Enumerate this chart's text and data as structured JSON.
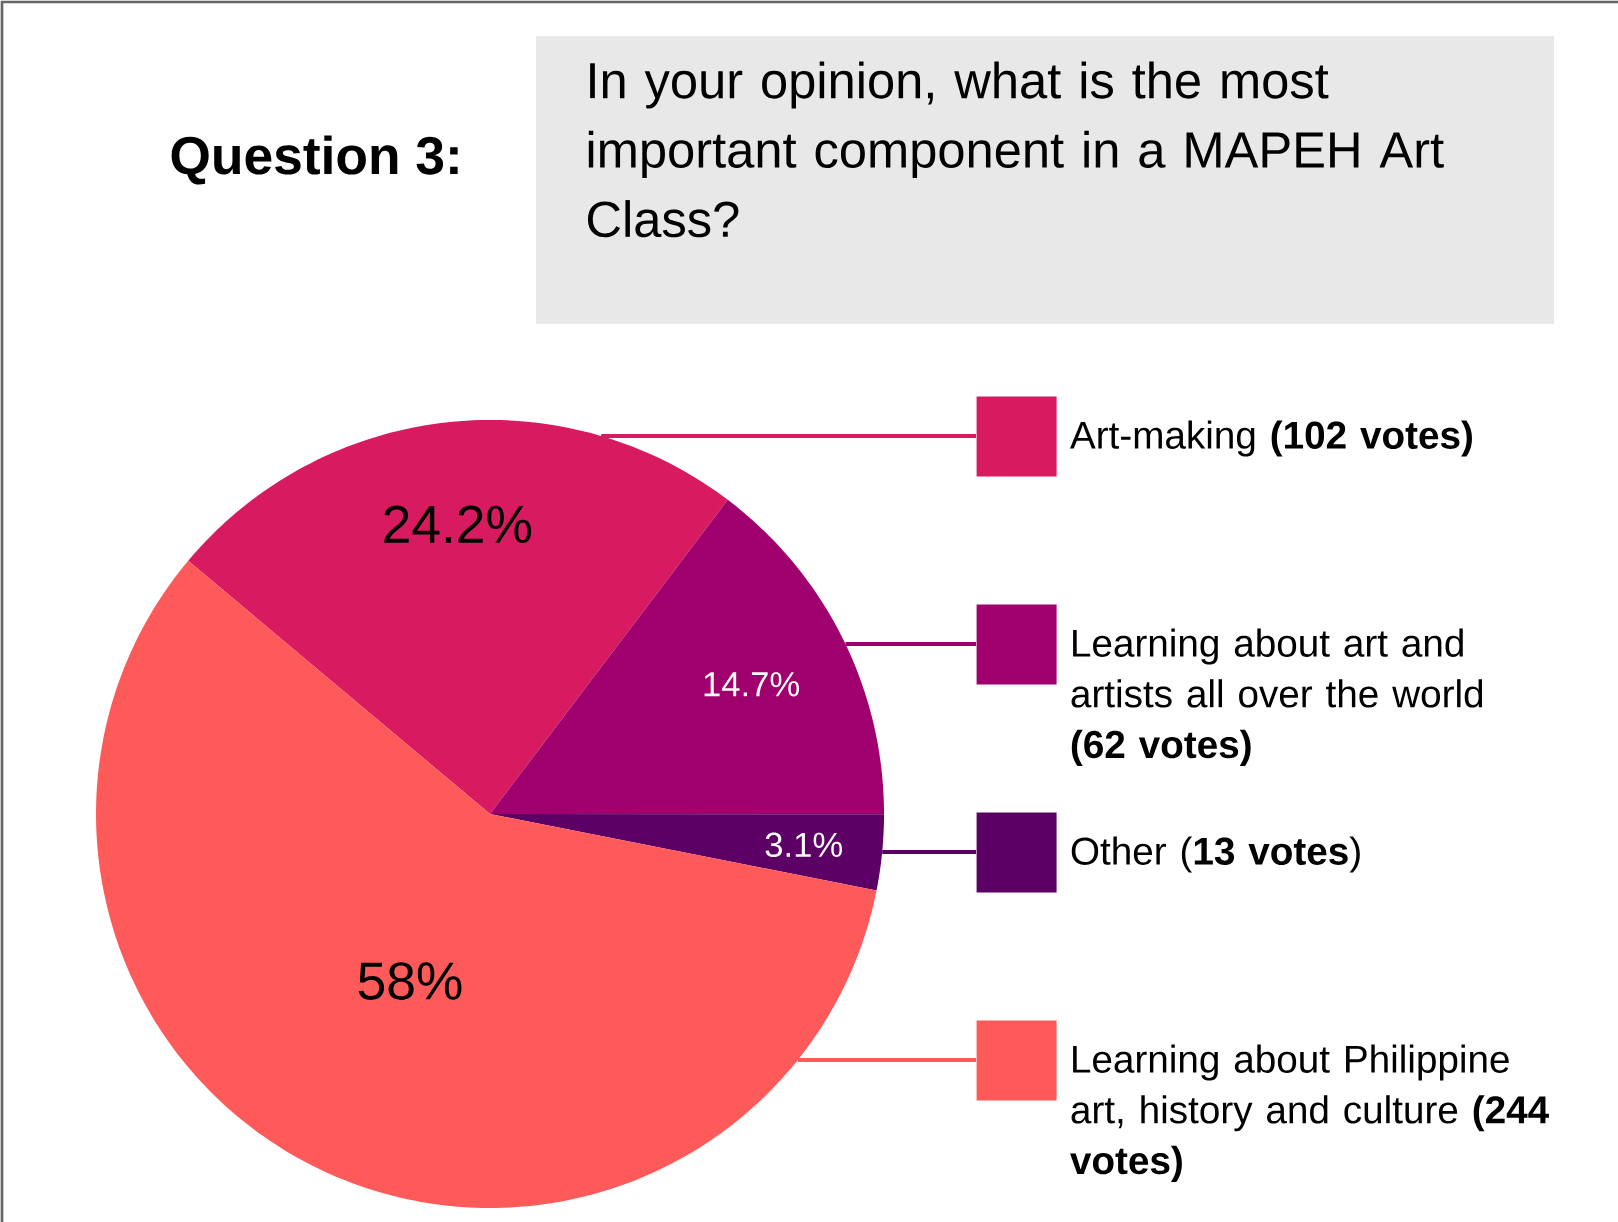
{
  "chart_data": {
    "type": "pie",
    "title": "Question 3:",
    "subtitle": "In your opinion, what is the most important component in a MAPEH Art Class?",
    "categories": [
      "Art-making **(102 votes)**",
      "Learning about art and artists all over the world **(62 votes)**",
      "Other (**13 votes**)",
      "Learning about Philippine art, history and culture **(244 votes)**"
    ],
    "values": [
      24.2,
      14.7,
      3.1,
      58
    ],
    "value_labels": [
      "24.2%",
      "14.7%",
      "3.1%",
      "58%"
    ],
    "colors": [
      "#d81b60",
      "#a0006e",
      "#5c0066",
      "#ff5a5a"
    ],
    "legend": "right"
  }
}
